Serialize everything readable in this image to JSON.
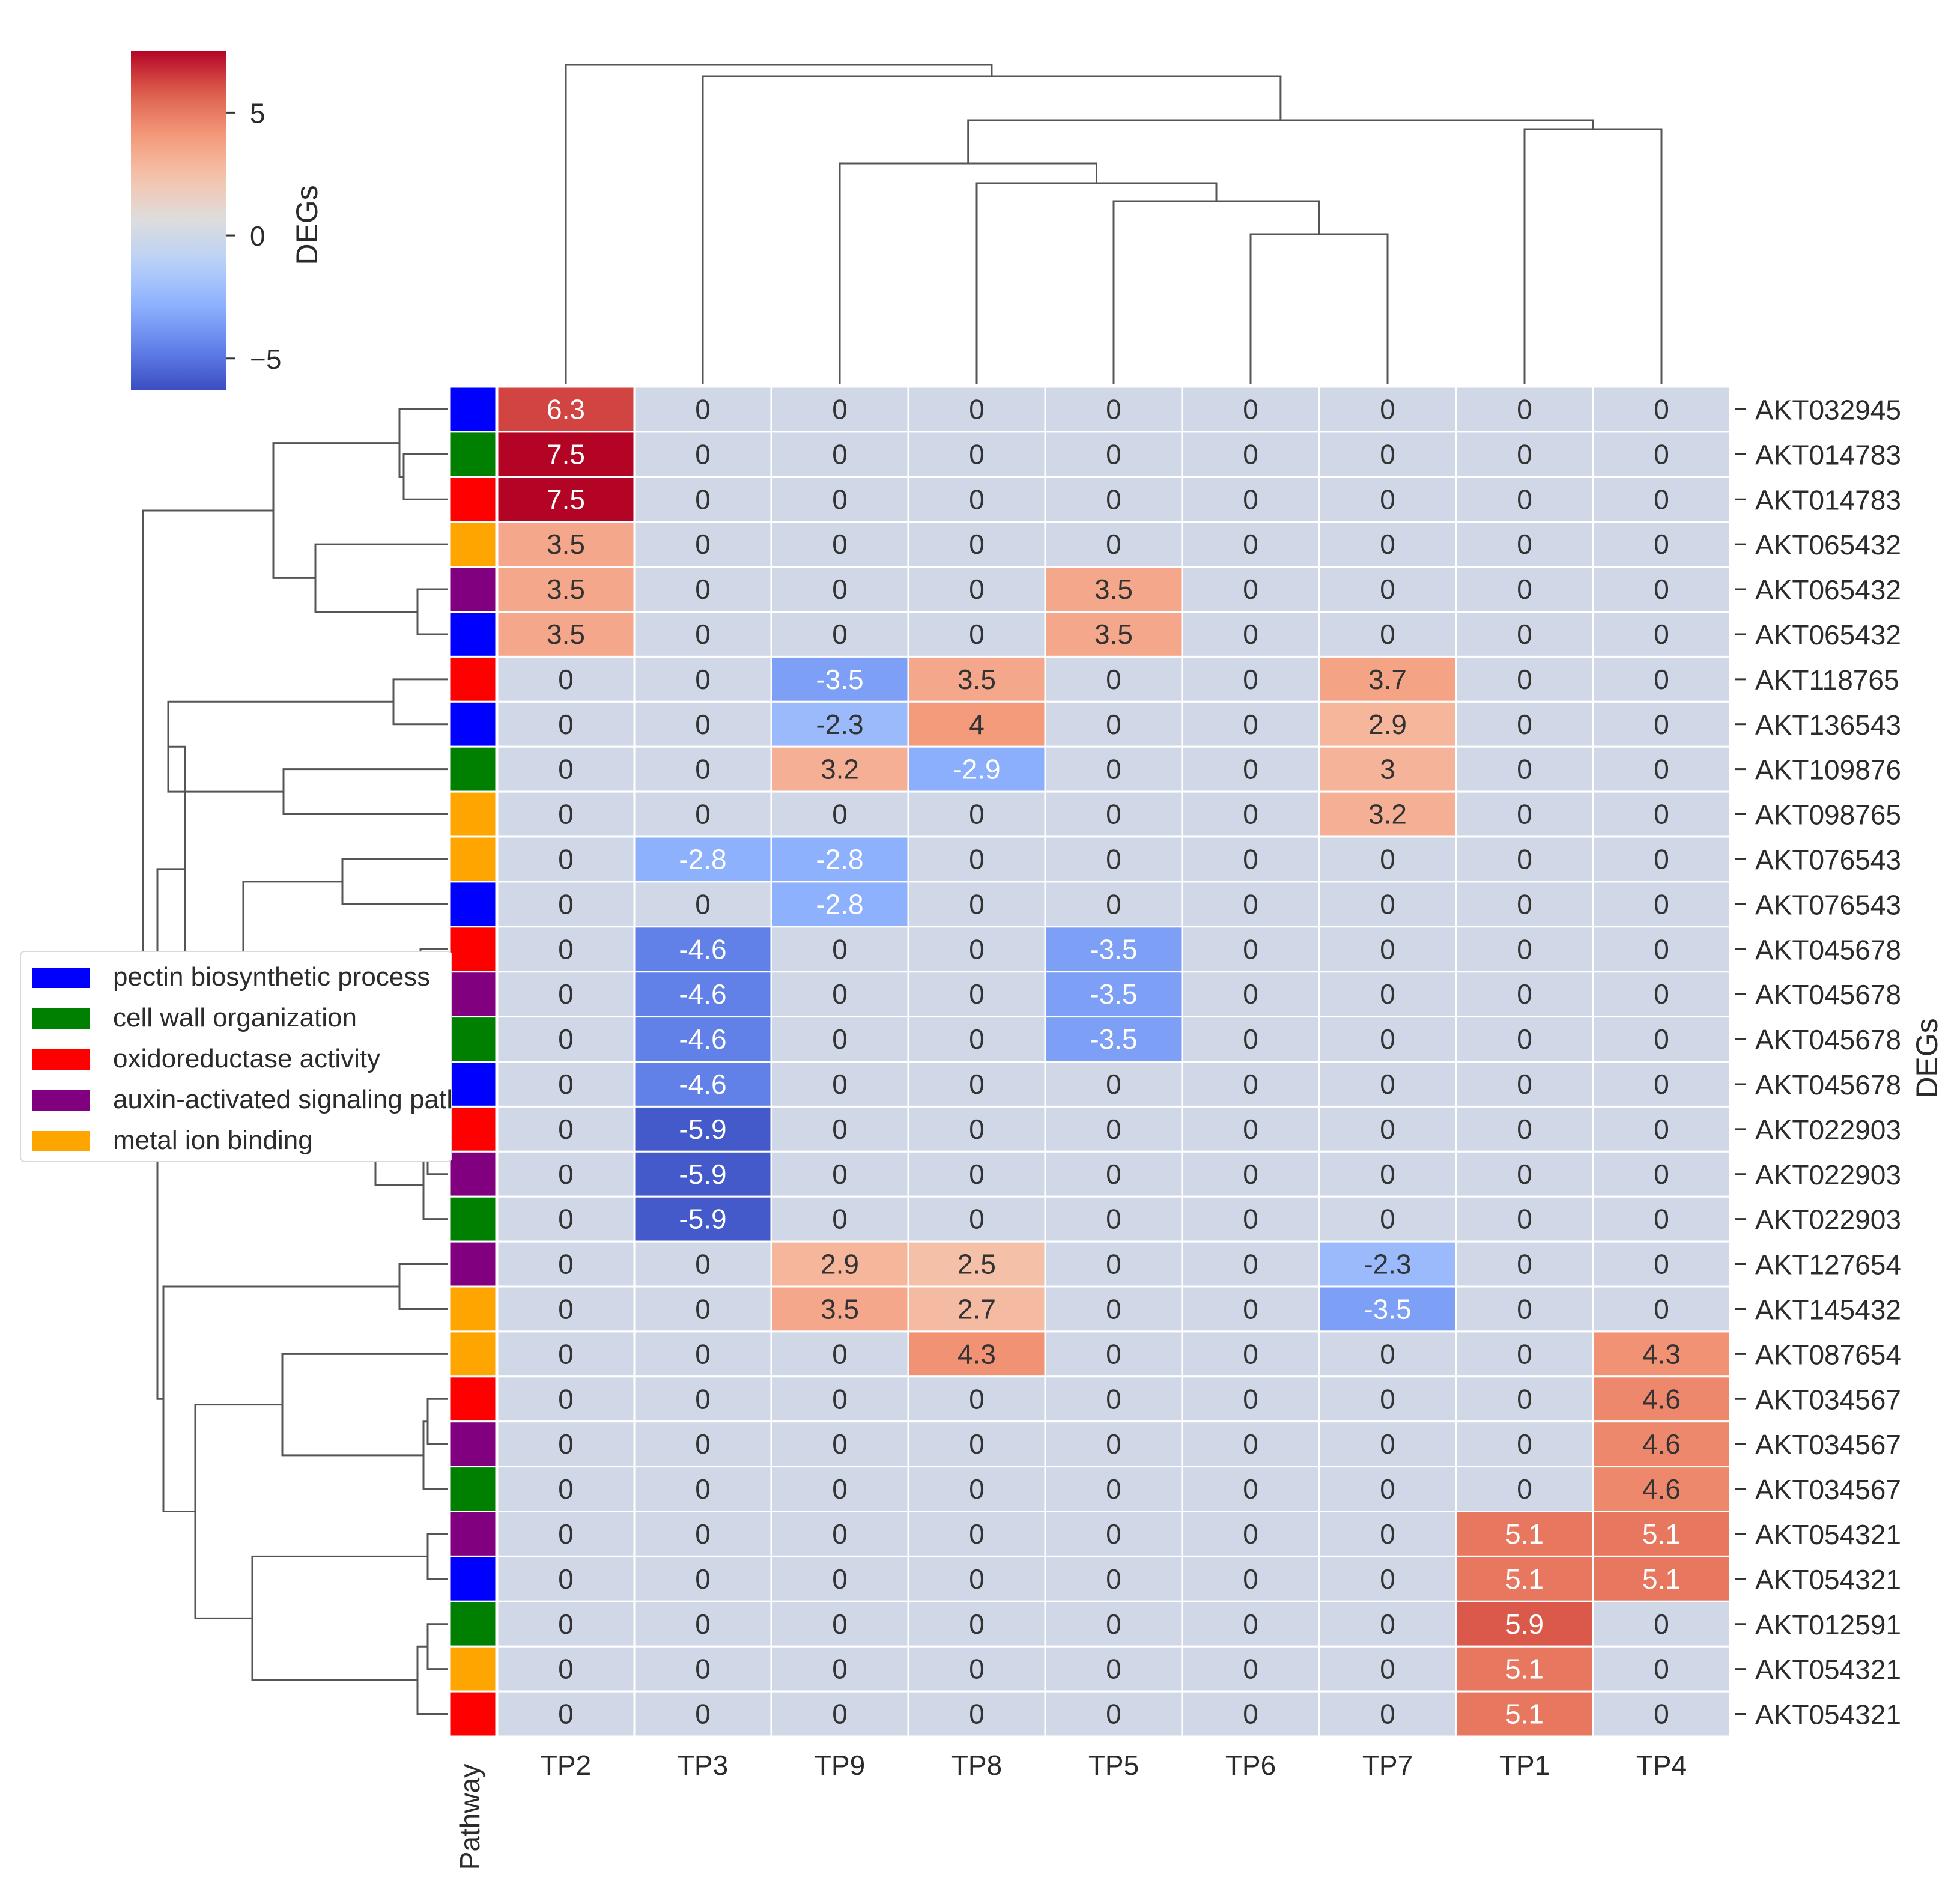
{
  "chart_data": {
    "type": "heatmap",
    "title": "",
    "columns": [
      "TP2",
      "TP3",
      "TP9",
      "TP8",
      "TP5",
      "TP6",
      "TP7",
      "TP1",
      "TP4"
    ],
    "row_axis_label": "DEGs",
    "pathway_strip_label": "Pathway",
    "rows": [
      {
        "gene": "AKT032945",
        "pathway": "pectin biosynthetic process",
        "values": [
          6.3,
          0,
          0,
          0,
          0,
          0,
          0,
          0,
          0
        ]
      },
      {
        "gene": "AKT014783",
        "pathway": "cell wall organization",
        "values": [
          7.5,
          0,
          0,
          0,
          0,
          0,
          0,
          0,
          0
        ]
      },
      {
        "gene": "AKT014783",
        "pathway": "oxidoreductase activity",
        "values": [
          7.5,
          0,
          0,
          0,
          0,
          0,
          0,
          0,
          0
        ]
      },
      {
        "gene": "AKT065432",
        "pathway": "metal ion binding",
        "values": [
          3.5,
          0,
          0,
          0,
          0,
          0,
          0,
          0,
          0
        ]
      },
      {
        "gene": "AKT065432",
        "pathway": "auxin-activated signaling pathway",
        "values": [
          3.5,
          0,
          0,
          0,
          3.5,
          0,
          0,
          0,
          0
        ]
      },
      {
        "gene": "AKT065432",
        "pathway": "pectin biosynthetic process",
        "values": [
          3.5,
          0,
          0,
          0,
          3.5,
          0,
          0,
          0,
          0
        ]
      },
      {
        "gene": "AKT118765",
        "pathway": "oxidoreductase activity",
        "values": [
          0,
          0,
          -3.5,
          3.5,
          0,
          0,
          3.7,
          0,
          0
        ]
      },
      {
        "gene": "AKT136543",
        "pathway": "pectin biosynthetic process",
        "values": [
          0,
          0,
          -2.3,
          4,
          0,
          0,
          2.9,
          0,
          0
        ]
      },
      {
        "gene": "AKT109876",
        "pathway": "cell wall organization",
        "values": [
          0,
          0,
          3.2,
          -2.9,
          0,
          0,
          3,
          0,
          0
        ]
      },
      {
        "gene": "AKT098765",
        "pathway": "metal ion binding",
        "values": [
          0,
          0,
          0,
          0,
          0,
          0,
          3.2,
          0,
          0
        ]
      },
      {
        "gene": "AKT076543",
        "pathway": "metal ion binding",
        "values": [
          0,
          -2.8,
          -2.8,
          0,
          0,
          0,
          0,
          0,
          0
        ]
      },
      {
        "gene": "AKT076543",
        "pathway": "pectin biosynthetic process",
        "values": [
          0,
          0,
          -2.8,
          0,
          0,
          0,
          0,
          0,
          0
        ]
      },
      {
        "gene": "AKT045678",
        "pathway": "oxidoreductase activity",
        "values": [
          0,
          -4.6,
          0,
          0,
          -3.5,
          0,
          0,
          0,
          0
        ]
      },
      {
        "gene": "AKT045678",
        "pathway": "auxin-activated signaling pathway",
        "values": [
          0,
          -4.6,
          0,
          0,
          -3.5,
          0,
          0,
          0,
          0
        ]
      },
      {
        "gene": "AKT045678",
        "pathway": "cell wall organization",
        "values": [
          0,
          -4.6,
          0,
          0,
          -3.5,
          0,
          0,
          0,
          0
        ]
      },
      {
        "gene": "AKT045678",
        "pathway": "pectin biosynthetic process",
        "values": [
          0,
          -4.6,
          0,
          0,
          0,
          0,
          0,
          0,
          0
        ]
      },
      {
        "gene": "AKT022903",
        "pathway": "oxidoreductase activity",
        "values": [
          0,
          -5.9,
          0,
          0,
          0,
          0,
          0,
          0,
          0
        ]
      },
      {
        "gene": "AKT022903",
        "pathway": "auxin-activated signaling pathway",
        "values": [
          0,
          -5.9,
          0,
          0,
          0,
          0,
          0,
          0,
          0
        ]
      },
      {
        "gene": "AKT022903",
        "pathway": "cell wall organization",
        "values": [
          0,
          -5.9,
          0,
          0,
          0,
          0,
          0,
          0,
          0
        ]
      },
      {
        "gene": "AKT127654",
        "pathway": "auxin-activated signaling pathway",
        "values": [
          0,
          0,
          2.9,
          2.5,
          0,
          0,
          -2.3,
          0,
          0
        ]
      },
      {
        "gene": "AKT145432",
        "pathway": "metal ion binding",
        "values": [
          0,
          0,
          3.5,
          2.7,
          0,
          0,
          -3.5,
          0,
          0
        ]
      },
      {
        "gene": "AKT087654",
        "pathway": "metal ion binding",
        "values": [
          0,
          0,
          0,
          4.3,
          0,
          0,
          0,
          0,
          4.3
        ]
      },
      {
        "gene": "AKT034567",
        "pathway": "oxidoreductase activity",
        "values": [
          0,
          0,
          0,
          0,
          0,
          0,
          0,
          0,
          4.6
        ]
      },
      {
        "gene": "AKT034567",
        "pathway": "auxin-activated signaling pathway",
        "values": [
          0,
          0,
          0,
          0,
          0,
          0,
          0,
          0,
          4.6
        ]
      },
      {
        "gene": "AKT034567",
        "pathway": "cell wall organization",
        "values": [
          0,
          0,
          0,
          0,
          0,
          0,
          0,
          0,
          4.6
        ]
      },
      {
        "gene": "AKT054321",
        "pathway": "auxin-activated signaling pathway",
        "values": [
          0,
          0,
          0,
          0,
          0,
          0,
          0,
          5.1,
          5.1
        ]
      },
      {
        "gene": "AKT054321",
        "pathway": "pectin biosynthetic process",
        "values": [
          0,
          0,
          0,
          0,
          0,
          0,
          0,
          5.1,
          5.1
        ]
      },
      {
        "gene": "AKT012591",
        "pathway": "cell wall organization",
        "values": [
          0,
          0,
          0,
          0,
          0,
          0,
          0,
          5.9,
          0
        ]
      },
      {
        "gene": "AKT054321",
        "pathway": "metal ion binding",
        "values": [
          0,
          0,
          0,
          0,
          0,
          0,
          0,
          5.1,
          0
        ]
      },
      {
        "gene": "AKT054321",
        "pathway": "oxidoreductase activity",
        "values": [
          0,
          0,
          0,
          0,
          0,
          0,
          0,
          5.1,
          0
        ]
      }
    ],
    "colorbar": {
      "label": "DEGs",
      "colormap": "coolwarm",
      "vmin": -6.3,
      "vmax": 7.5,
      "ticks": [
        5,
        0,
        -5
      ],
      "tick_labels": [
        "5",
        "0",
        "−5"
      ]
    },
    "legend": {
      "placement": "left",
      "entries": [
        {
          "label": "pectin biosynthetic process",
          "color": "#0000ff"
        },
        {
          "label": "cell wall organization",
          "color": "#008000"
        },
        {
          "label": "oxidoreductase activity",
          "color": "#ff0000"
        },
        {
          "label": "auxin-activated signaling pathway",
          "color": "#800080"
        },
        {
          "label": "metal ion binding",
          "color": "#ffa500"
        }
      ]
    },
    "column_dendrogram": "((TP2,(TP3,((TP9,(TP8,(TP5,(TP6,TP7)))),(TP1,TP4)))))",
    "row_dendrogram": "clustered (30 leaves)"
  }
}
